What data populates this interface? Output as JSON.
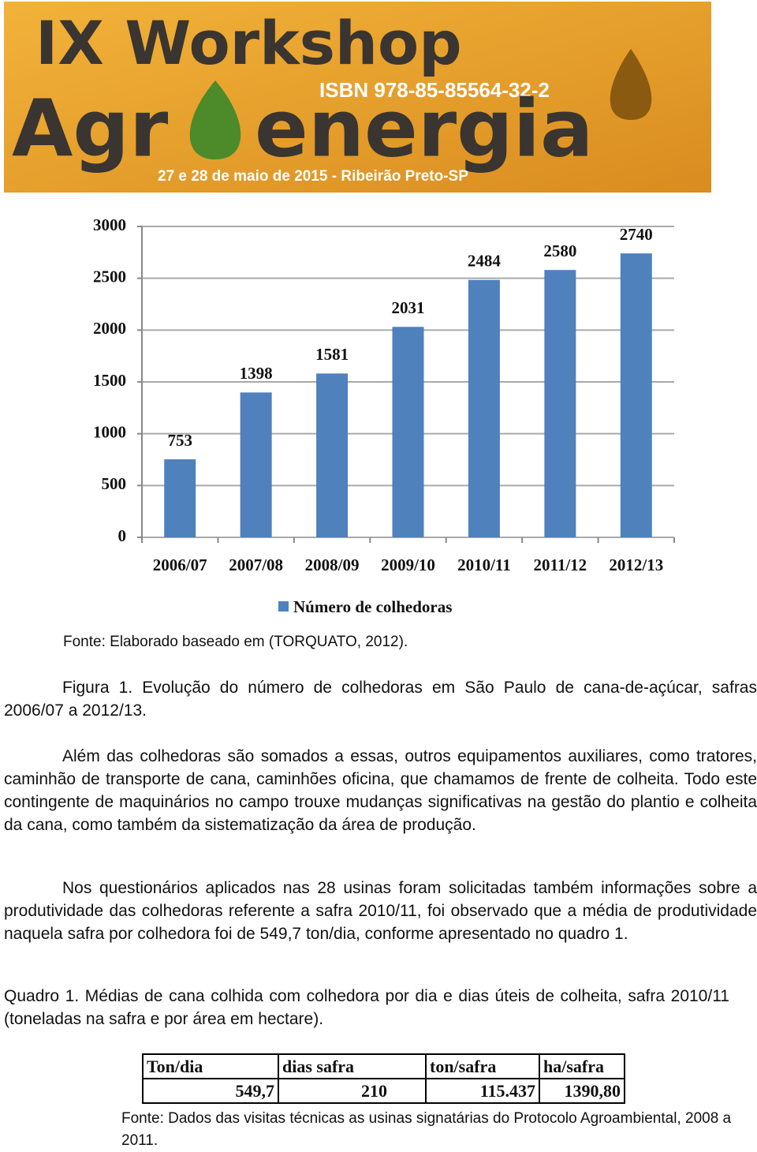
{
  "banner": {
    "title": "IX Workshop",
    "brand_start": "Agr",
    "brand_end": "energia",
    "isbn": "ISBN 978-85-85564-32-2",
    "date": "27 e 28 de maio de 2015 - Ribeirão Preto-SP"
  },
  "chart_data": {
    "type": "bar",
    "categories": [
      "2006/07",
      "2007/08",
      "2008/09",
      "2009/10",
      "2010/11",
      "2011/12",
      "2012/13"
    ],
    "series": [
      {
        "name": "Número de colhedoras",
        "color": "#4f81bd",
        "values": [
          753,
          1398,
          1581,
          2031,
          2484,
          2580,
          2740
        ]
      }
    ],
    "ylim": [
      0,
      3000
    ],
    "yticks": [
      0,
      500,
      1000,
      1500,
      2000,
      2500,
      3000
    ],
    "grid": true,
    "legend": "bottom"
  },
  "chart_source": "Fonte: Elaborado baseado em (TORQUATO, 2012).",
  "figure_caption": "Figura 1. Evolução do número de colhedoras em São Paulo de cana-de-açúcar, safras 2006/07 a 2012/13.",
  "paragraphs": [
    "Além das colhedoras são somados a essas, outros equipamentos auxiliares, como tratores, caminhão de transporte de cana, caminhões oficina, que chamamos de frente de colheita. Todo este contingente de maquinários no campo trouxe mudanças significativas na gestão do plantio e colheita da cana, como também da sistematização da área de produção.",
    "Nos questionários aplicados nas 28 usinas foram solicitadas também informações sobre a produtividade das colhedoras referente a safra 2010/11, foi observado que a média de produtividade naquela safra por colhedora foi de 549,7 ton/dia, conforme apresentado no quadro 1."
  ],
  "table_caption": "Quadro 1. Médias de cana colhida com colhedora por dia e dias úteis de colheita, safra 2010/11 (toneladas na safra e por área em hectare).",
  "table": {
    "header": [
      "Ton/dia",
      "dias safra",
      "ton/safra",
      "ha/safra"
    ],
    "rows": [
      [
        "549,7",
        "210",
        "115.437",
        "1390,80"
      ]
    ]
  },
  "table_source": "Fonte: Dados das visitas técnicas as usinas signatárias do Protocolo Agroambiental, 2008 a 2011."
}
